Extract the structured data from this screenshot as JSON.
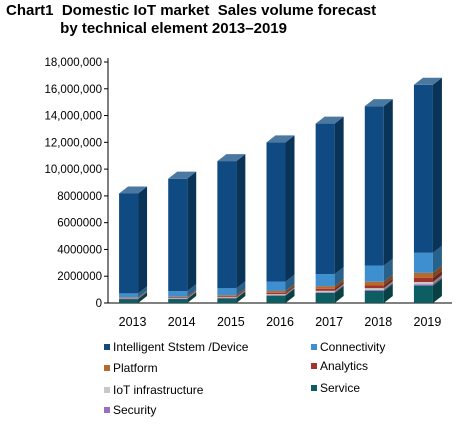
{
  "chart_data": {
    "type": "bar",
    "stacked": true,
    "style": "3d-column",
    "title": "Chart1  Domestic IoT market  Sales volume forecast\n             by technical element 2013–2019",
    "xlabel": "",
    "ylabel": "",
    "ylim": [
      0,
      18000000
    ],
    "yticks": [
      0,
      2000000,
      4000000,
      6000000,
      8000000,
      10000000,
      12000000,
      14000000,
      16000000,
      18000000
    ],
    "ytick_labels": [
      "0",
      "2000000",
      "4000000",
      "6000000",
      "8000000",
      "10,000,000",
      "12,000,000",
      "14,000,000",
      "16,000,000",
      "18,000,000"
    ],
    "categories": [
      "2013",
      "2014",
      "2015",
      "2016",
      "2017",
      "2018",
      "2019"
    ],
    "grid": false,
    "legend_position": "bottom",
    "series": [
      {
        "name": "Service",
        "color": "#0d5e63",
        "values": [
          300000,
          300000,
          350000,
          550000,
          750000,
          900000,
          1300000
        ]
      },
      {
        "name": "Security",
        "color": "#9b6fc0",
        "values": [
          20000,
          25000,
          30000,
          40000,
          60000,
          80000,
          100000
        ]
      },
      {
        "name": "IoT infrastructure",
        "color": "#c8c8c8",
        "values": [
          30000,
          40000,
          50000,
          70000,
          100000,
          130000,
          170000
        ]
      },
      {
        "name": "Analytics",
        "color": "#a0332e",
        "values": [
          30000,
          40000,
          60000,
          100000,
          150000,
          200000,
          300000
        ]
      },
      {
        "name": "Platform",
        "color": "#b86a2c",
        "values": [
          40000,
          60000,
          90000,
          140000,
          200000,
          280000,
          380000
        ]
      },
      {
        "name": "Connectivity",
        "color": "#3d8fd0",
        "values": [
          300000,
          420000,
          520000,
          700000,
          900000,
          1200000,
          1500000
        ]
      },
      {
        "name": "Intelligent Ststem /Device",
        "color": "#0f4b82",
        "values": [
          7460000,
          8400000,
          9500000,
          10400000,
          11240000,
          11910000,
          12550000
        ]
      }
    ],
    "legend_order": [
      "Intelligent Ststem /Device",
      "Connectivity",
      "Platform",
      "Analytics",
      "IoT infrastructure",
      "Service",
      "Security"
    ]
  }
}
